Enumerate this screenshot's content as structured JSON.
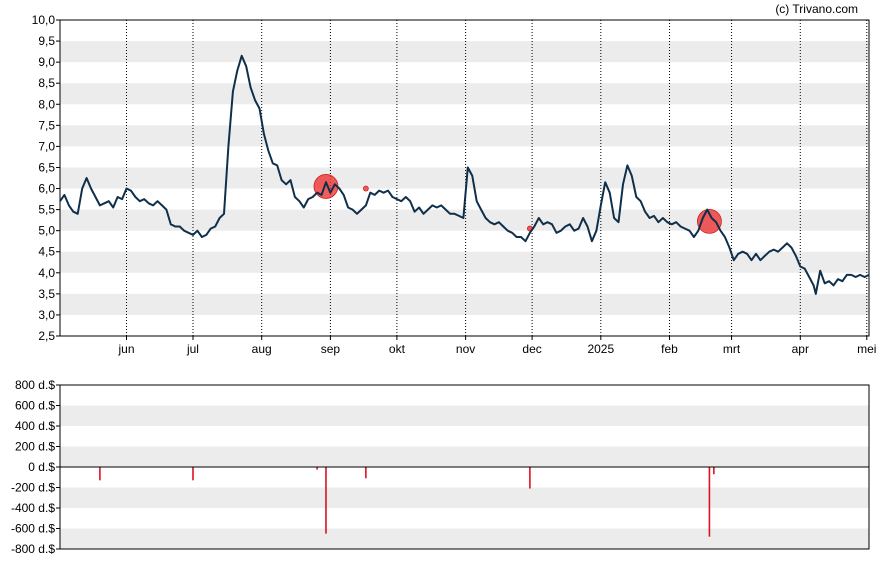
{
  "credit": "(c) Trivano.com",
  "chart_data": [
    {
      "type": "line",
      "title": "",
      "xlabel": "",
      "ylabel": "",
      "ylim": [
        2.5,
        10.0
      ],
      "y_ticks": [
        "10,0",
        "9,5",
        "9,0",
        "8,5",
        "8,0",
        "7,5",
        "7,0",
        "6,5",
        "6,0",
        "5,5",
        "5,0",
        "4,5",
        "4,0",
        "3,5",
        "3,0",
        "2,5"
      ],
      "x_ticks": [
        {
          "label": "jun",
          "date": "2024-06-01"
        },
        {
          "label": "jul",
          "date": "2024-07-01"
        },
        {
          "label": "aug",
          "date": "2024-08-01"
        },
        {
          "label": "sep",
          "date": "2024-09-01"
        },
        {
          "label": "okt",
          "date": "2024-10-01"
        },
        {
          "label": "nov",
          "date": "2024-11-01"
        },
        {
          "label": "dec",
          "date": "2024-12-01"
        },
        {
          "label": "2025",
          "date": "2025-01-01"
        },
        {
          "label": "feb",
          "date": "2025-02-01"
        },
        {
          "label": "mrt",
          "date": "2025-03-01"
        },
        {
          "label": "apr",
          "date": "2025-04-01"
        },
        {
          "label": "mei",
          "date": "2025-05-01"
        }
      ],
      "x_range": [
        "2024-05-02",
        "2025-05-02"
      ],
      "grid": true,
      "line_color": "#0f2f4a",
      "series": [
        {
          "points": [
            [
              "2024-05-02",
              5.7
            ],
            [
              "2024-05-04",
              5.85
            ],
            [
              "2024-05-06",
              5.6
            ],
            [
              "2024-05-08",
              5.45
            ],
            [
              "2024-05-10",
              5.4
            ],
            [
              "2024-05-12",
              6.0
            ],
            [
              "2024-05-14",
              6.25
            ],
            [
              "2024-05-16",
              6.0
            ],
            [
              "2024-05-18",
              5.8
            ],
            [
              "2024-05-20",
              5.6
            ],
            [
              "2024-05-22",
              5.65
            ],
            [
              "2024-05-24",
              5.7
            ],
            [
              "2024-05-26",
              5.55
            ],
            [
              "2024-05-28",
              5.8
            ],
            [
              "2024-05-30",
              5.75
            ],
            [
              "2024-06-01",
              6.0
            ],
            [
              "2024-06-03",
              5.95
            ],
            [
              "2024-06-05",
              5.8
            ],
            [
              "2024-06-07",
              5.7
            ],
            [
              "2024-06-09",
              5.75
            ],
            [
              "2024-06-11",
              5.65
            ],
            [
              "2024-06-13",
              5.6
            ],
            [
              "2024-06-15",
              5.7
            ],
            [
              "2024-06-17",
              5.6
            ],
            [
              "2024-06-19",
              5.5
            ],
            [
              "2024-06-21",
              5.15
            ],
            [
              "2024-06-23",
              5.1
            ],
            [
              "2024-06-25",
              5.1
            ],
            [
              "2024-06-27",
              5.0
            ],
            [
              "2024-06-29",
              4.95
            ],
            [
              "2024-07-01",
              4.9
            ],
            [
              "2024-07-03",
              5.0
            ],
            [
              "2024-07-05",
              4.85
            ],
            [
              "2024-07-07",
              4.9
            ],
            [
              "2024-07-09",
              5.05
            ],
            [
              "2024-07-11",
              5.1
            ],
            [
              "2024-07-13",
              5.3
            ],
            [
              "2024-07-15",
              5.4
            ],
            [
              "2024-07-17",
              7.0
            ],
            [
              "2024-07-19",
              8.3
            ],
            [
              "2024-07-21",
              8.8
            ],
            [
              "2024-07-23",
              9.15
            ],
            [
              "2024-07-25",
              8.9
            ],
            [
              "2024-07-27",
              8.4
            ],
            [
              "2024-07-29",
              8.1
            ],
            [
              "2024-07-31",
              7.9
            ],
            [
              "2024-08-02",
              7.3
            ],
            [
              "2024-08-04",
              6.9
            ],
            [
              "2024-08-06",
              6.6
            ],
            [
              "2024-08-08",
              6.55
            ],
            [
              "2024-08-10",
              6.2
            ],
            [
              "2024-08-12",
              6.1
            ],
            [
              "2024-08-14",
              6.2
            ],
            [
              "2024-08-16",
              5.8
            ],
            [
              "2024-08-18",
              5.7
            ],
            [
              "2024-08-20",
              5.55
            ],
            [
              "2024-08-22",
              5.75
            ],
            [
              "2024-08-24",
              5.8
            ],
            [
              "2024-08-26",
              5.9
            ],
            [
              "2024-08-28",
              5.85
            ],
            [
              "2024-08-30",
              6.15
            ],
            [
              "2024-09-01",
              5.9
            ],
            [
              "2024-09-03",
              6.1
            ],
            [
              "2024-09-05",
              6.0
            ],
            [
              "2024-09-07",
              5.85
            ],
            [
              "2024-09-09",
              5.55
            ],
            [
              "2024-09-11",
              5.5
            ],
            [
              "2024-09-13",
              5.4
            ],
            [
              "2024-09-15",
              5.5
            ],
            [
              "2024-09-17",
              5.6
            ],
            [
              "2024-09-19",
              5.9
            ],
            [
              "2024-09-21",
              5.85
            ],
            [
              "2024-09-23",
              5.95
            ],
            [
              "2024-09-25",
              5.9
            ],
            [
              "2024-09-27",
              5.95
            ],
            [
              "2024-09-29",
              5.8
            ],
            [
              "2024-10-01",
              5.75
            ],
            [
              "2024-10-03",
              5.7
            ],
            [
              "2024-10-05",
              5.8
            ],
            [
              "2024-10-07",
              5.7
            ],
            [
              "2024-10-09",
              5.45
            ],
            [
              "2024-10-11",
              5.55
            ],
            [
              "2024-10-13",
              5.4
            ],
            [
              "2024-10-15",
              5.5
            ],
            [
              "2024-10-17",
              5.6
            ],
            [
              "2024-10-19",
              5.55
            ],
            [
              "2024-10-21",
              5.6
            ],
            [
              "2024-10-23",
              5.5
            ],
            [
              "2024-10-25",
              5.4
            ],
            [
              "2024-10-27",
              5.4
            ],
            [
              "2024-10-29",
              5.35
            ],
            [
              "2024-10-31",
              5.3
            ],
            [
              "2024-11-02",
              6.5
            ],
            [
              "2024-11-04",
              6.3
            ],
            [
              "2024-11-06",
              5.7
            ],
            [
              "2024-11-08",
              5.5
            ],
            [
              "2024-11-10",
              5.3
            ],
            [
              "2024-11-12",
              5.2
            ],
            [
              "2024-11-14",
              5.15
            ],
            [
              "2024-11-16",
              5.2
            ],
            [
              "2024-11-18",
              5.1
            ],
            [
              "2024-11-20",
              5.0
            ],
            [
              "2024-11-22",
              4.95
            ],
            [
              "2024-11-24",
              4.85
            ],
            [
              "2024-11-26",
              4.85
            ],
            [
              "2024-11-28",
              4.75
            ],
            [
              "2024-11-30",
              4.95
            ],
            [
              "2024-12-02",
              5.1
            ],
            [
              "2024-12-04",
              5.3
            ],
            [
              "2024-12-06",
              5.15
            ],
            [
              "2024-12-08",
              5.2
            ],
            [
              "2024-12-10",
              5.15
            ],
            [
              "2024-12-12",
              4.95
            ],
            [
              "2024-12-14",
              5.0
            ],
            [
              "2024-12-16",
              5.1
            ],
            [
              "2024-12-18",
              5.15
            ],
            [
              "2024-12-20",
              5.0
            ],
            [
              "2024-12-22",
              5.05
            ],
            [
              "2024-12-24",
              5.3
            ],
            [
              "2024-12-26",
              5.1
            ],
            [
              "2024-12-28",
              4.75
            ],
            [
              "2024-12-30",
              5.0
            ],
            [
              "2025-01-01",
              5.6
            ],
            [
              "2025-01-03",
              6.15
            ],
            [
              "2025-01-05",
              5.9
            ],
            [
              "2025-01-07",
              5.3
            ],
            [
              "2025-01-09",
              5.2
            ],
            [
              "2025-01-11",
              6.1
            ],
            [
              "2025-01-13",
              6.55
            ],
            [
              "2025-01-15",
              6.3
            ],
            [
              "2025-01-17",
              5.8
            ],
            [
              "2025-01-19",
              5.7
            ],
            [
              "2025-01-21",
              5.45
            ],
            [
              "2025-01-23",
              5.3
            ],
            [
              "2025-01-25",
              5.35
            ],
            [
              "2025-01-27",
              5.2
            ],
            [
              "2025-01-29",
              5.3
            ],
            [
              "2025-01-31",
              5.2
            ],
            [
              "2025-02-02",
              5.15
            ],
            [
              "2025-02-04",
              5.2
            ],
            [
              "2025-02-06",
              5.1
            ],
            [
              "2025-02-08",
              5.05
            ],
            [
              "2025-02-10",
              5.0
            ],
            [
              "2025-02-12",
              4.85
            ],
            [
              "2025-02-14",
              5.0
            ],
            [
              "2025-02-16",
              5.3
            ],
            [
              "2025-02-18",
              5.5
            ],
            [
              "2025-02-20",
              5.3
            ],
            [
              "2025-02-22",
              5.2
            ],
            [
              "2025-02-24",
              5.0
            ],
            [
              "2025-02-26",
              4.85
            ],
            [
              "2025-02-28",
              4.6
            ],
            [
              "2025-03-02",
              4.3
            ],
            [
              "2025-03-04",
              4.45
            ],
            [
              "2025-03-06",
              4.5
            ],
            [
              "2025-03-08",
              4.45
            ],
            [
              "2025-03-10",
              4.3
            ],
            [
              "2025-03-12",
              4.45
            ],
            [
              "2025-03-14",
              4.3
            ],
            [
              "2025-03-16",
              4.4
            ],
            [
              "2025-03-18",
              4.5
            ],
            [
              "2025-03-20",
              4.55
            ],
            [
              "2025-03-22",
              4.5
            ],
            [
              "2025-03-24",
              4.6
            ],
            [
              "2025-03-26",
              4.7
            ],
            [
              "2025-03-28",
              4.6
            ],
            [
              "2025-03-30",
              4.4
            ],
            [
              "2025-04-01",
              4.15
            ],
            [
              "2025-04-03",
              4.1
            ],
            [
              "2025-04-05",
              3.9
            ],
            [
              "2025-04-07",
              3.7
            ],
            [
              "2025-04-08",
              3.5
            ],
            [
              "2025-04-10",
              4.05
            ],
            [
              "2025-04-12",
              3.75
            ],
            [
              "2025-04-14",
              3.8
            ],
            [
              "2025-04-16",
              3.7
            ],
            [
              "2025-04-18",
              3.85
            ],
            [
              "2025-04-20",
              3.8
            ],
            [
              "2025-04-22",
              3.95
            ],
            [
              "2025-04-24",
              3.95
            ],
            [
              "2025-04-26",
              3.9
            ],
            [
              "2025-04-28",
              3.95
            ],
            [
              "2025-04-30",
              3.9
            ],
            [
              "2025-05-02",
              3.95
            ]
          ]
        }
      ],
      "markers": [
        {
          "date": "2024-08-30",
          "value": 6.05,
          "size": "large"
        },
        {
          "date": "2024-09-17",
          "value": 6.0,
          "size": "small"
        },
        {
          "date": "2024-11-30",
          "value": 5.05,
          "size": "small"
        },
        {
          "date": "2025-02-19",
          "value": 5.22,
          "size": "large"
        }
      ],
      "marker_color": "#ee3333"
    },
    {
      "type": "bar",
      "title": "",
      "xlabel": "",
      "ylabel": "",
      "ylim": [
        -800,
        800
      ],
      "y_ticks": [
        "800 d.$",
        "600 d.$",
        "400 d.$",
        "200 d.$",
        "0 d.$",
        "-200 d.$",
        "-400 d.$",
        "-600 d.$",
        "-800 d.$"
      ],
      "bar_color": "#dd1122",
      "bars": [
        {
          "date": "2024-05-20",
          "value": -130
        },
        {
          "date": "2024-07-01",
          "value": -130
        },
        {
          "date": "2024-08-26",
          "value": -25
        },
        {
          "date": "2024-08-30",
          "value": -650
        },
        {
          "date": "2024-09-17",
          "value": -110
        },
        {
          "date": "2024-11-30",
          "value": -210
        },
        {
          "date": "2025-02-19",
          "value": -680
        },
        {
          "date": "2025-02-21",
          "value": -70
        }
      ]
    }
  ]
}
